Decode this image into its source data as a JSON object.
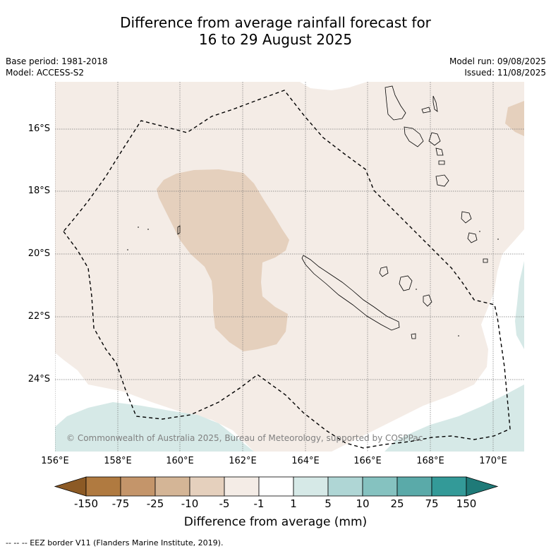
{
  "title_line1": "Difference from average rainfall forecast for",
  "title_line2": "16 to 29 August 2025",
  "base_period": "Base period: 1981-2018",
  "model": "Model: ACCESS-S2",
  "model_run": "Model run: 09/08/2025",
  "issued": "Issued: 11/08/2025",
  "copyright": "© Commonwealth of Australia 2025, Bureau of Meteorology, supported by COSPPac",
  "lat_ticks": [
    "16°S",
    "18°S",
    "20°S",
    "22°S",
    "24°S"
  ],
  "lon_ticks": [
    "156°E",
    "158°E",
    "160°E",
    "162°E",
    "164°E",
    "166°E",
    "168°E",
    "170°E"
  ],
  "colorbar": {
    "labels": [
      "-150",
      "-75",
      "-25",
      "-10",
      "-5",
      "-1",
      "1",
      "5",
      "10",
      "25",
      "75",
      "150"
    ],
    "colors": [
      "#8c5a25",
      "#b07a40",
      "#c4956a",
      "#d4b596",
      "#e5d0bd",
      "#f4ece6",
      "#ffffff",
      "#d6e9e7",
      "#afd6d5",
      "#85c2c0",
      "#5aaaa9",
      "#339a98",
      "#1f7a78"
    ],
    "title": "Difference from average (mm)"
  },
  "footer": "--  --  -- EEZ border V11 (Flanders Marine Institute, 2019)."
}
